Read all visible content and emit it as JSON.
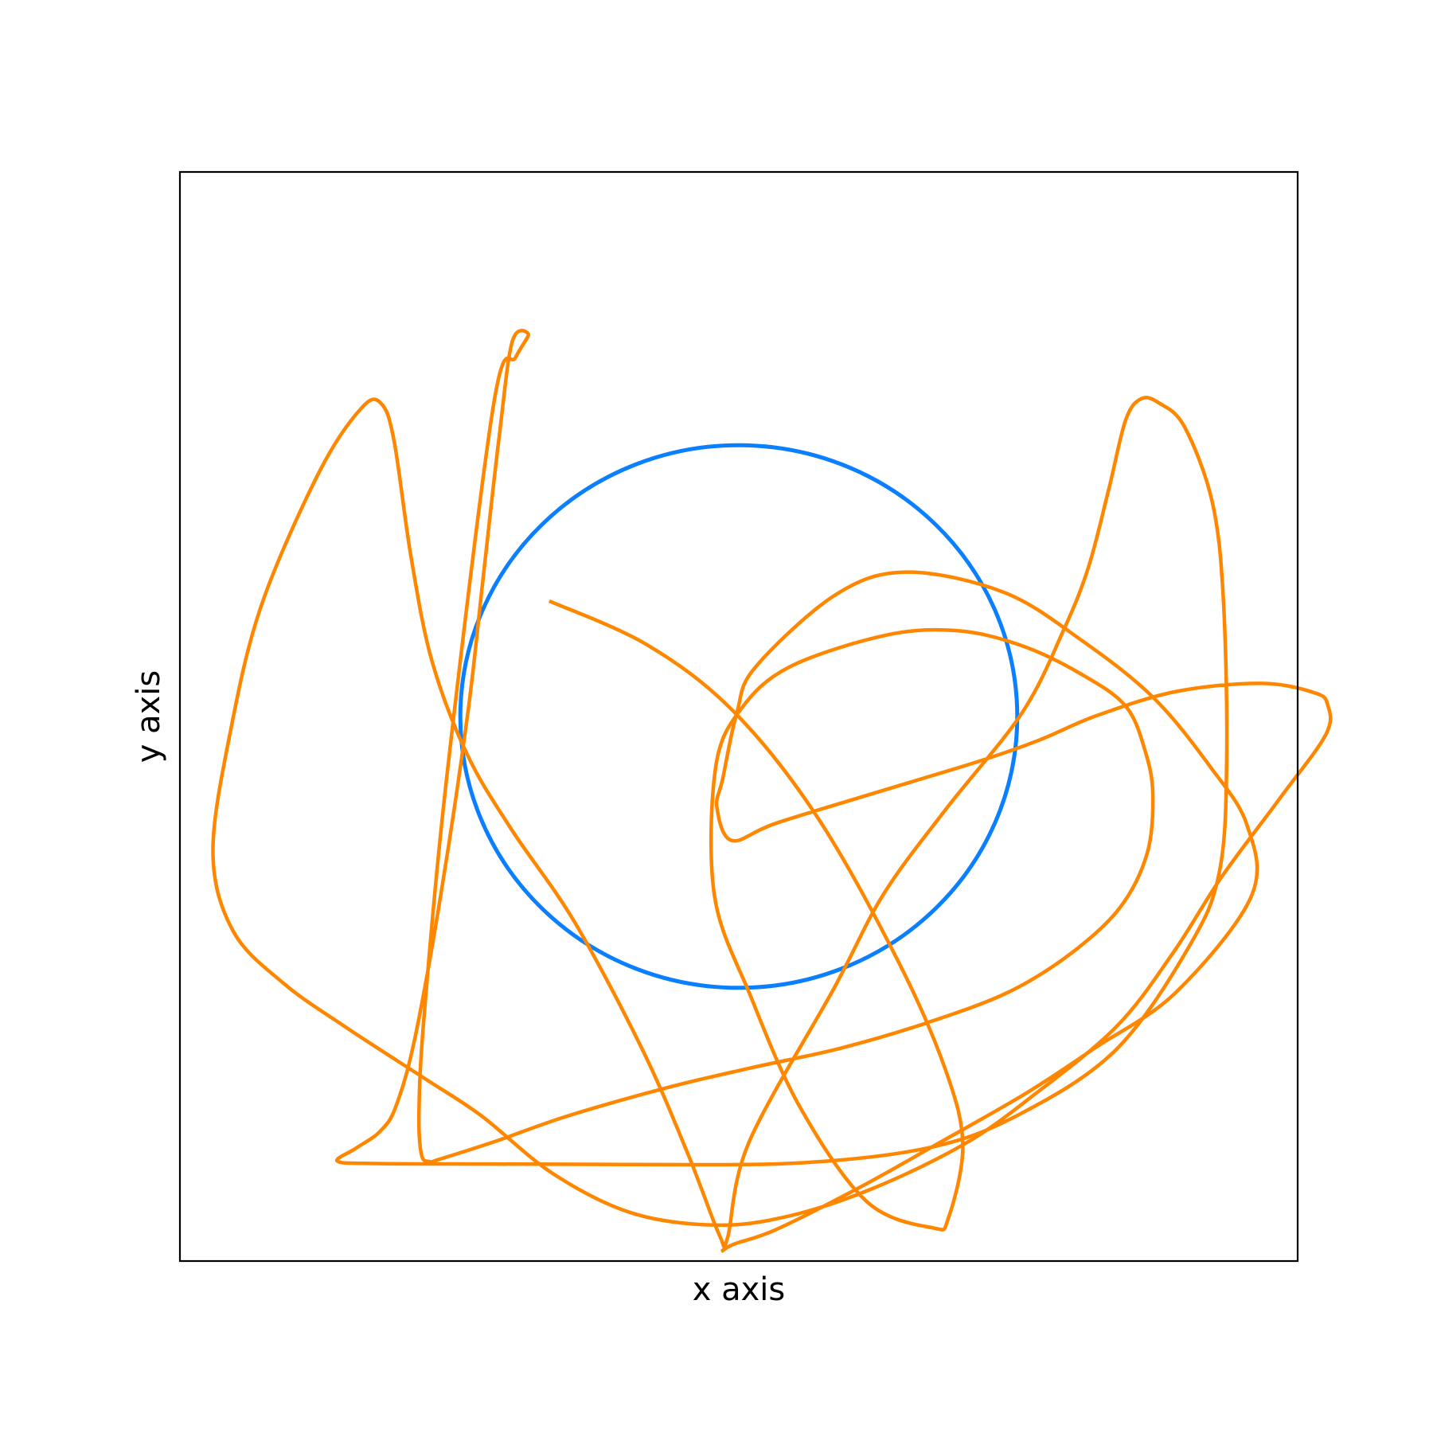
{
  "chart_data": {
    "type": "line",
    "title": "",
    "xlabel": "x axis",
    "ylabel": "y axis",
    "xlim": [
      -1.15,
      1.15
    ],
    "ylim": [
      -1.15,
      1.15
    ],
    "grid": false,
    "ticks": false,
    "legend": "none",
    "series": [
      {
        "color": "#0a7fff",
        "kind": "circle",
        "center": [
          0,
          0
        ],
        "radius": 0.573
      },
      {
        "color": "#ff8700",
        "kind": "curve",
        "points": [
          [
            -0.39,
            0.244
          ],
          [
            -0.188,
            0.151
          ],
          [
            -0.011,
            0.011
          ],
          [
            0.16,
            -0.21
          ],
          [
            0.327,
            -0.515
          ],
          [
            0.425,
            -0.745
          ],
          [
            0.461,
            -0.905
          ],
          [
            0.431,
            -1.06
          ],
          [
            0.4,
            -1.08
          ],
          [
            0.264,
            -1.025
          ],
          [
            0.126,
            -0.825
          ],
          [
            0.024,
            -0.59
          ],
          [
            -0.05,
            -0.379
          ],
          [
            -0.048,
            -0.11
          ],
          [
            0.004,
            0.015
          ],
          [
            0.105,
            0.105
          ],
          [
            0.304,
            0.172
          ],
          [
            0.451,
            0.181
          ],
          [
            0.581,
            0.15
          ],
          [
            0.704,
            0.09
          ],
          [
            0.796,
            0.022
          ],
          [
            0.836,
            -0.072
          ],
          [
            0.852,
            -0.165
          ],
          [
            0.84,
            -0.29
          ],
          [
            0.784,
            -0.404
          ],
          [
            0.684,
            -0.5
          ],
          [
            0.555,
            -0.582
          ],
          [
            0.39,
            -0.646
          ],
          [
            0.212,
            -0.7
          ],
          [
            0.03,
            -0.741
          ],
          [
            -0.14,
            -0.782
          ],
          [
            -0.35,
            -0.843
          ],
          [
            -0.5,
            -0.897
          ],
          [
            -0.616,
            -0.935
          ],
          [
            -0.636,
            -0.94
          ],
          [
            -0.653,
            -0.925
          ],
          [
            -0.658,
            -0.833
          ],
          [
            -0.647,
            -0.627
          ],
          [
            -0.6,
            -0.12
          ],
          [
            -0.504,
            0.662
          ],
          [
            -0.459,
            0.759
          ],
          [
            -0.433,
            0.807
          ],
          [
            -0.466,
            0.792
          ],
          [
            -0.493,
            0.592
          ],
          [
            -0.527,
            0.284
          ],
          [
            -0.557,
            0.012
          ],
          [
            -0.609,
            -0.35
          ],
          [
            -0.665,
            -0.672
          ],
          [
            -0.705,
            -0.822
          ],
          [
            -0.738,
            -0.876
          ],
          [
            -0.788,
            -0.912
          ],
          [
            -0.826,
            -0.939
          ],
          [
            -0.748,
            -0.944
          ],
          [
            -0.522,
            -0.945
          ],
          [
            -0.232,
            -0.946
          ],
          [
            0.121,
            -0.943
          ],
          [
            0.394,
            -0.91
          ],
          [
            0.578,
            -0.84
          ],
          [
            0.776,
            -0.704
          ],
          [
            0.927,
            -0.485
          ],
          [
            0.989,
            -0.328
          ],
          [
            1.004,
            -0.09
          ],
          [
            0.997,
            0.249
          ],
          [
            0.974,
            0.454
          ],
          [
            0.917,
            0.612
          ],
          [
            0.865,
            0.662
          ],
          [
            0.828,
            0.671
          ],
          [
            0.796,
            0.626
          ],
          [
            0.762,
            0.483
          ],
          [
            0.72,
            0.317
          ],
          [
            0.669,
            0.184
          ],
          [
            0.583,
            0.008
          ],
          [
            0.426,
            -0.196
          ],
          [
            0.298,
            -0.375
          ],
          [
            0.198,
            -0.57
          ],
          [
            0.021,
            -0.899
          ],
          [
            -0.023,
            -1.1
          ],
          [
            -0.04,
            -1.095
          ],
          [
            -0.105,
            -0.923
          ],
          [
            -0.198,
            -0.704
          ],
          [
            -0.338,
            -0.434
          ],
          [
            -0.468,
            -0.238
          ],
          [
            -0.559,
            -0.08
          ],
          [
            -0.631,
            0.116
          ],
          [
            -0.674,
            0.334
          ],
          [
            -0.709,
            0.58
          ],
          [
            -0.735,
            0.66
          ],
          [
            -0.775,
            0.653
          ],
          [
            -0.862,
            0.519
          ],
          [
            -0.982,
            0.236
          ],
          [
            -1.046,
            -0.031
          ],
          [
            -1.082,
            -0.288
          ],
          [
            -1.04,
            -0.454
          ],
          [
            -0.936,
            -0.564
          ],
          [
            -0.806,
            -0.658
          ],
          [
            -0.644,
            -0.766
          ],
          [
            -0.53,
            -0.843
          ],
          [
            -0.383,
            -0.965
          ],
          [
            -0.222,
            -1.048
          ],
          [
            -0.05,
            -1.074
          ],
          [
            0.099,
            -1.056
          ],
          [
            0.275,
            -0.997
          ],
          [
            0.464,
            -0.903
          ],
          [
            0.605,
            -0.801
          ],
          [
            0.777,
            -0.655
          ],
          [
            0.893,
            -0.5
          ],
          [
            0.994,
            -0.338
          ],
          [
            1.114,
            -0.172
          ],
          [
            1.208,
            -0.038
          ],
          [
            1.212,
            0.024
          ],
          [
            1.185,
            0.05
          ],
          [
            1.076,
            0.07
          ],
          [
            0.901,
            0.053
          ],
          [
            0.737,
            0.002
          ],
          [
            0.618,
            -0.05
          ],
          [
            0.496,
            -0.094
          ],
          [
            0.333,
            -0.145
          ],
          [
            0.081,
            -0.224
          ],
          [
            -0.014,
            -0.262
          ],
          [
            -0.045,
            -0.192
          ],
          [
            -0.033,
            -0.131
          ],
          [
            -0.004,
            0.008
          ],
          [
            0.034,
            0.104
          ],
          [
            0.199,
            0.257
          ],
          [
            0.345,
            0.305
          ],
          [
            0.546,
            0.262
          ],
          [
            0.705,
            0.161
          ],
          [
            0.853,
            0.04
          ],
          [
            0.97,
            -0.106
          ],
          [
            1.046,
            -0.23
          ],
          [
            1.055,
            -0.379
          ],
          [
            0.9,
            -0.582
          ],
          [
            0.733,
            -0.7
          ],
          [
            0.592,
            -0.795
          ],
          [
            0.408,
            -0.903
          ],
          [
            0.246,
            -0.996
          ],
          [
            0.076,
            -1.084
          ],
          [
            -0.009,
            -1.114
          ],
          [
            -0.036,
            -1.13
          ]
        ]
      }
    ]
  }
}
